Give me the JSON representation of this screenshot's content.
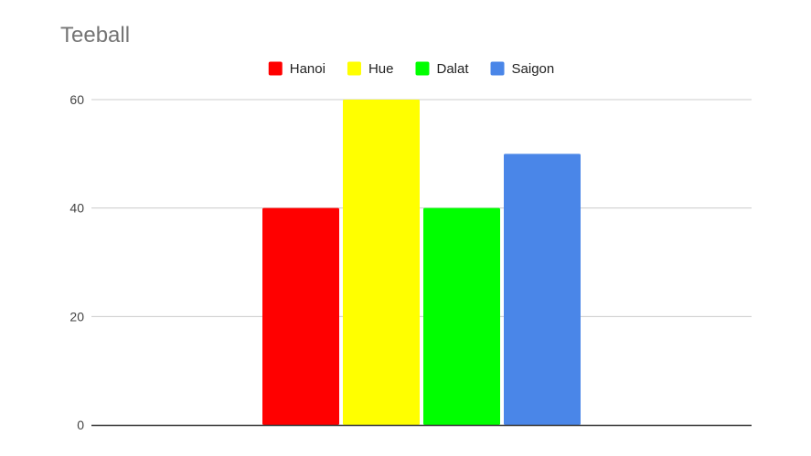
{
  "chart_data": {
    "type": "bar",
    "title": "Teeball",
    "xlabel": "",
    "ylabel": "",
    "categories": [
      ""
    ],
    "series": [
      {
        "name": "Hanoi",
        "color": "#ff0000",
        "values": [
          40
        ]
      },
      {
        "name": "Hue",
        "color": "#ffff00",
        "values": [
          60
        ]
      },
      {
        "name": "Dalat",
        "color": "#00ff00",
        "values": [
          40
        ]
      },
      {
        "name": "Saigon",
        "color": "#4a86e8",
        "values": [
          50
        ]
      }
    ],
    "ylim": [
      0,
      60
    ],
    "yticks": [
      "0",
      "20",
      "40",
      "60"
    ],
    "grid": true,
    "legend_position": "top"
  }
}
